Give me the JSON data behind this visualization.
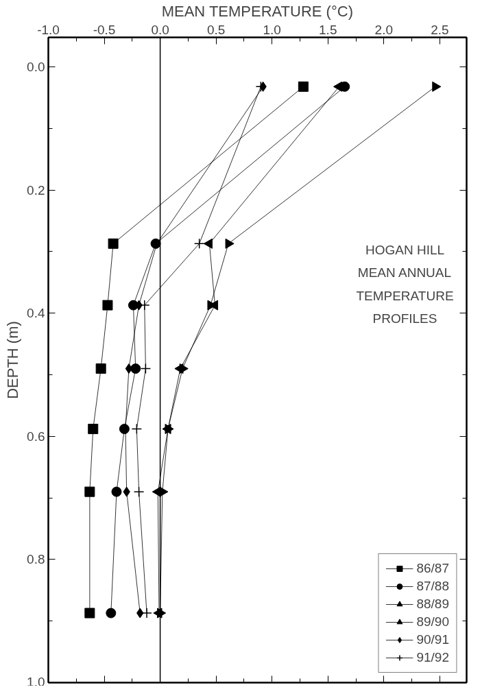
{
  "chart_data": {
    "type": "line",
    "orientation": "horizontal",
    "xlabel": "MEAN TEMPERATURE (°C)",
    "ylabel": "DEPTH (m)",
    "x": [
      0.032,
      0.287,
      0.387,
      0.49,
      0.588,
      0.69,
      0.887
    ],
    "series": [
      {
        "name": "86/87",
        "color": "#000000",
        "marker": "square",
        "values": [
          1.28,
          -0.42,
          -0.47,
          -0.53,
          -0.6,
          -0.63,
          -0.63
        ]
      },
      {
        "name": "87/88",
        "color": "#000000",
        "marker": "circle",
        "values": [
          1.65,
          -0.04,
          -0.24,
          -0.22,
          -0.32,
          -0.39,
          -0.44
        ]
      },
      {
        "name": "88/89",
        "color": "#000000",
        "marker": "triangle_right",
        "values": [
          2.46,
          0.61,
          0.45,
          0.2,
          0.07,
          0.02,
          0.0
        ]
      },
      {
        "name": "89/90",
        "color": "#000000",
        "marker": "triangle_left",
        "values": [
          1.6,
          0.44,
          0.49,
          0.18,
          0.07,
          -0.02,
          -0.01
        ]
      },
      {
        "name": "90/91",
        "color": "#000000",
        "marker": "diamond",
        "values": [
          0.92,
          -0.03,
          -0.19,
          -0.28,
          -0.31,
          -0.3,
          -0.18
        ]
      },
      {
        "name": "91/92",
        "color": "#000000",
        "marker": "cross",
        "values": [
          0.9,
          0.35,
          -0.14,
          -0.13,
          -0.21,
          -0.19,
          -0.12
        ]
      }
    ],
    "xlim": [
      -1.0,
      2.74
    ],
    "xticks": [
      {
        "value": -1,
        "label": "-1.0"
      },
      -0.5,
      {
        "value": 0,
        "label": "0.0"
      },
      0.5,
      {
        "value": 1,
        "label": "1.0"
      },
      1.5,
      {
        "value": 2,
        "label": "2.0"
      },
      2.5
    ],
    "ylim": [
      1.0,
      -0.048
    ],
    "yticks": [
      {
        "value": 0,
        "label": "0.0"
      },
      0.2,
      0.4,
      0.6,
      0.8,
      {
        "value": 1,
        "label": "1.0"
      }
    ],
    "ref_lines": [
      {
        "axis": "x",
        "value": 0,
        "color": "#000000"
      }
    ],
    "annotations": [
      "HOGAN HILL\nMEAN ANNUAL\nTEMPERATURE\nPROFILES"
    ],
    "grid": false,
    "legend": "bottom right",
    "line_style": "solid"
  }
}
